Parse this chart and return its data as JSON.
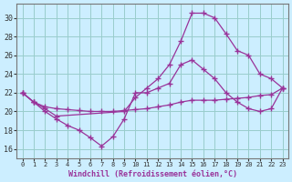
{
  "bg_color": "#cceeff",
  "grid_color": "#99cccc",
  "line_color": "#993399",
  "marker_color": "#993399",
  "xlabel": "Windchill (Refroidissement éolien,°C)",
  "xlim": [
    -0.5,
    23.5
  ],
  "ylim": [
    15,
    31.5
  ],
  "yticks": [
    16,
    18,
    20,
    22,
    24,
    26,
    28,
    30
  ],
  "xticks": [
    0,
    1,
    2,
    3,
    4,
    5,
    6,
    7,
    8,
    9,
    10,
    11,
    12,
    13,
    14,
    15,
    16,
    17,
    18,
    19,
    20,
    21,
    22,
    23
  ],
  "series": [
    {
      "x": [
        0,
        1,
        2,
        3,
        9,
        10,
        11,
        12,
        13,
        14,
        15,
        16,
        17,
        18,
        19,
        20,
        21,
        22,
        23
      ],
      "y": [
        22,
        21,
        20.3,
        19.5,
        20,
        21.5,
        22.5,
        23.5,
        25,
        27.5,
        30.5,
        30.5,
        30,
        28.3,
        26.5,
        26.0,
        24.0,
        23.5,
        22.5
      ]
    },
    {
      "x": [
        0,
        1,
        2,
        3,
        4,
        5,
        6,
        7,
        8,
        9,
        10,
        11,
        12,
        13,
        14,
        15,
        16,
        17,
        18,
        19,
        20,
        21,
        22,
        23
      ],
      "y": [
        22,
        21,
        20,
        19.2,
        18.5,
        18,
        17.2,
        16.3,
        17.3,
        19.2,
        22,
        22,
        22.5,
        23,
        25,
        25.5,
        24.5,
        23.5,
        22.0,
        21,
        20.3,
        20,
        20.3,
        22.5
      ]
    },
    {
      "x": [
        0,
        1,
        2,
        3,
        4,
        5,
        6,
        7,
        8,
        9,
        10,
        11,
        12,
        13,
        14,
        15,
        16,
        17,
        18,
        19,
        20,
        21,
        22,
        23
      ],
      "y": [
        22,
        21,
        20.5,
        20.3,
        20.2,
        20.1,
        20.0,
        20.0,
        20.0,
        20.1,
        20.2,
        20.3,
        20.5,
        20.7,
        21.0,
        21.2,
        21.2,
        21.2,
        21.3,
        21.4,
        21.5,
        21.7,
        21.8,
        22.5
      ]
    }
  ]
}
